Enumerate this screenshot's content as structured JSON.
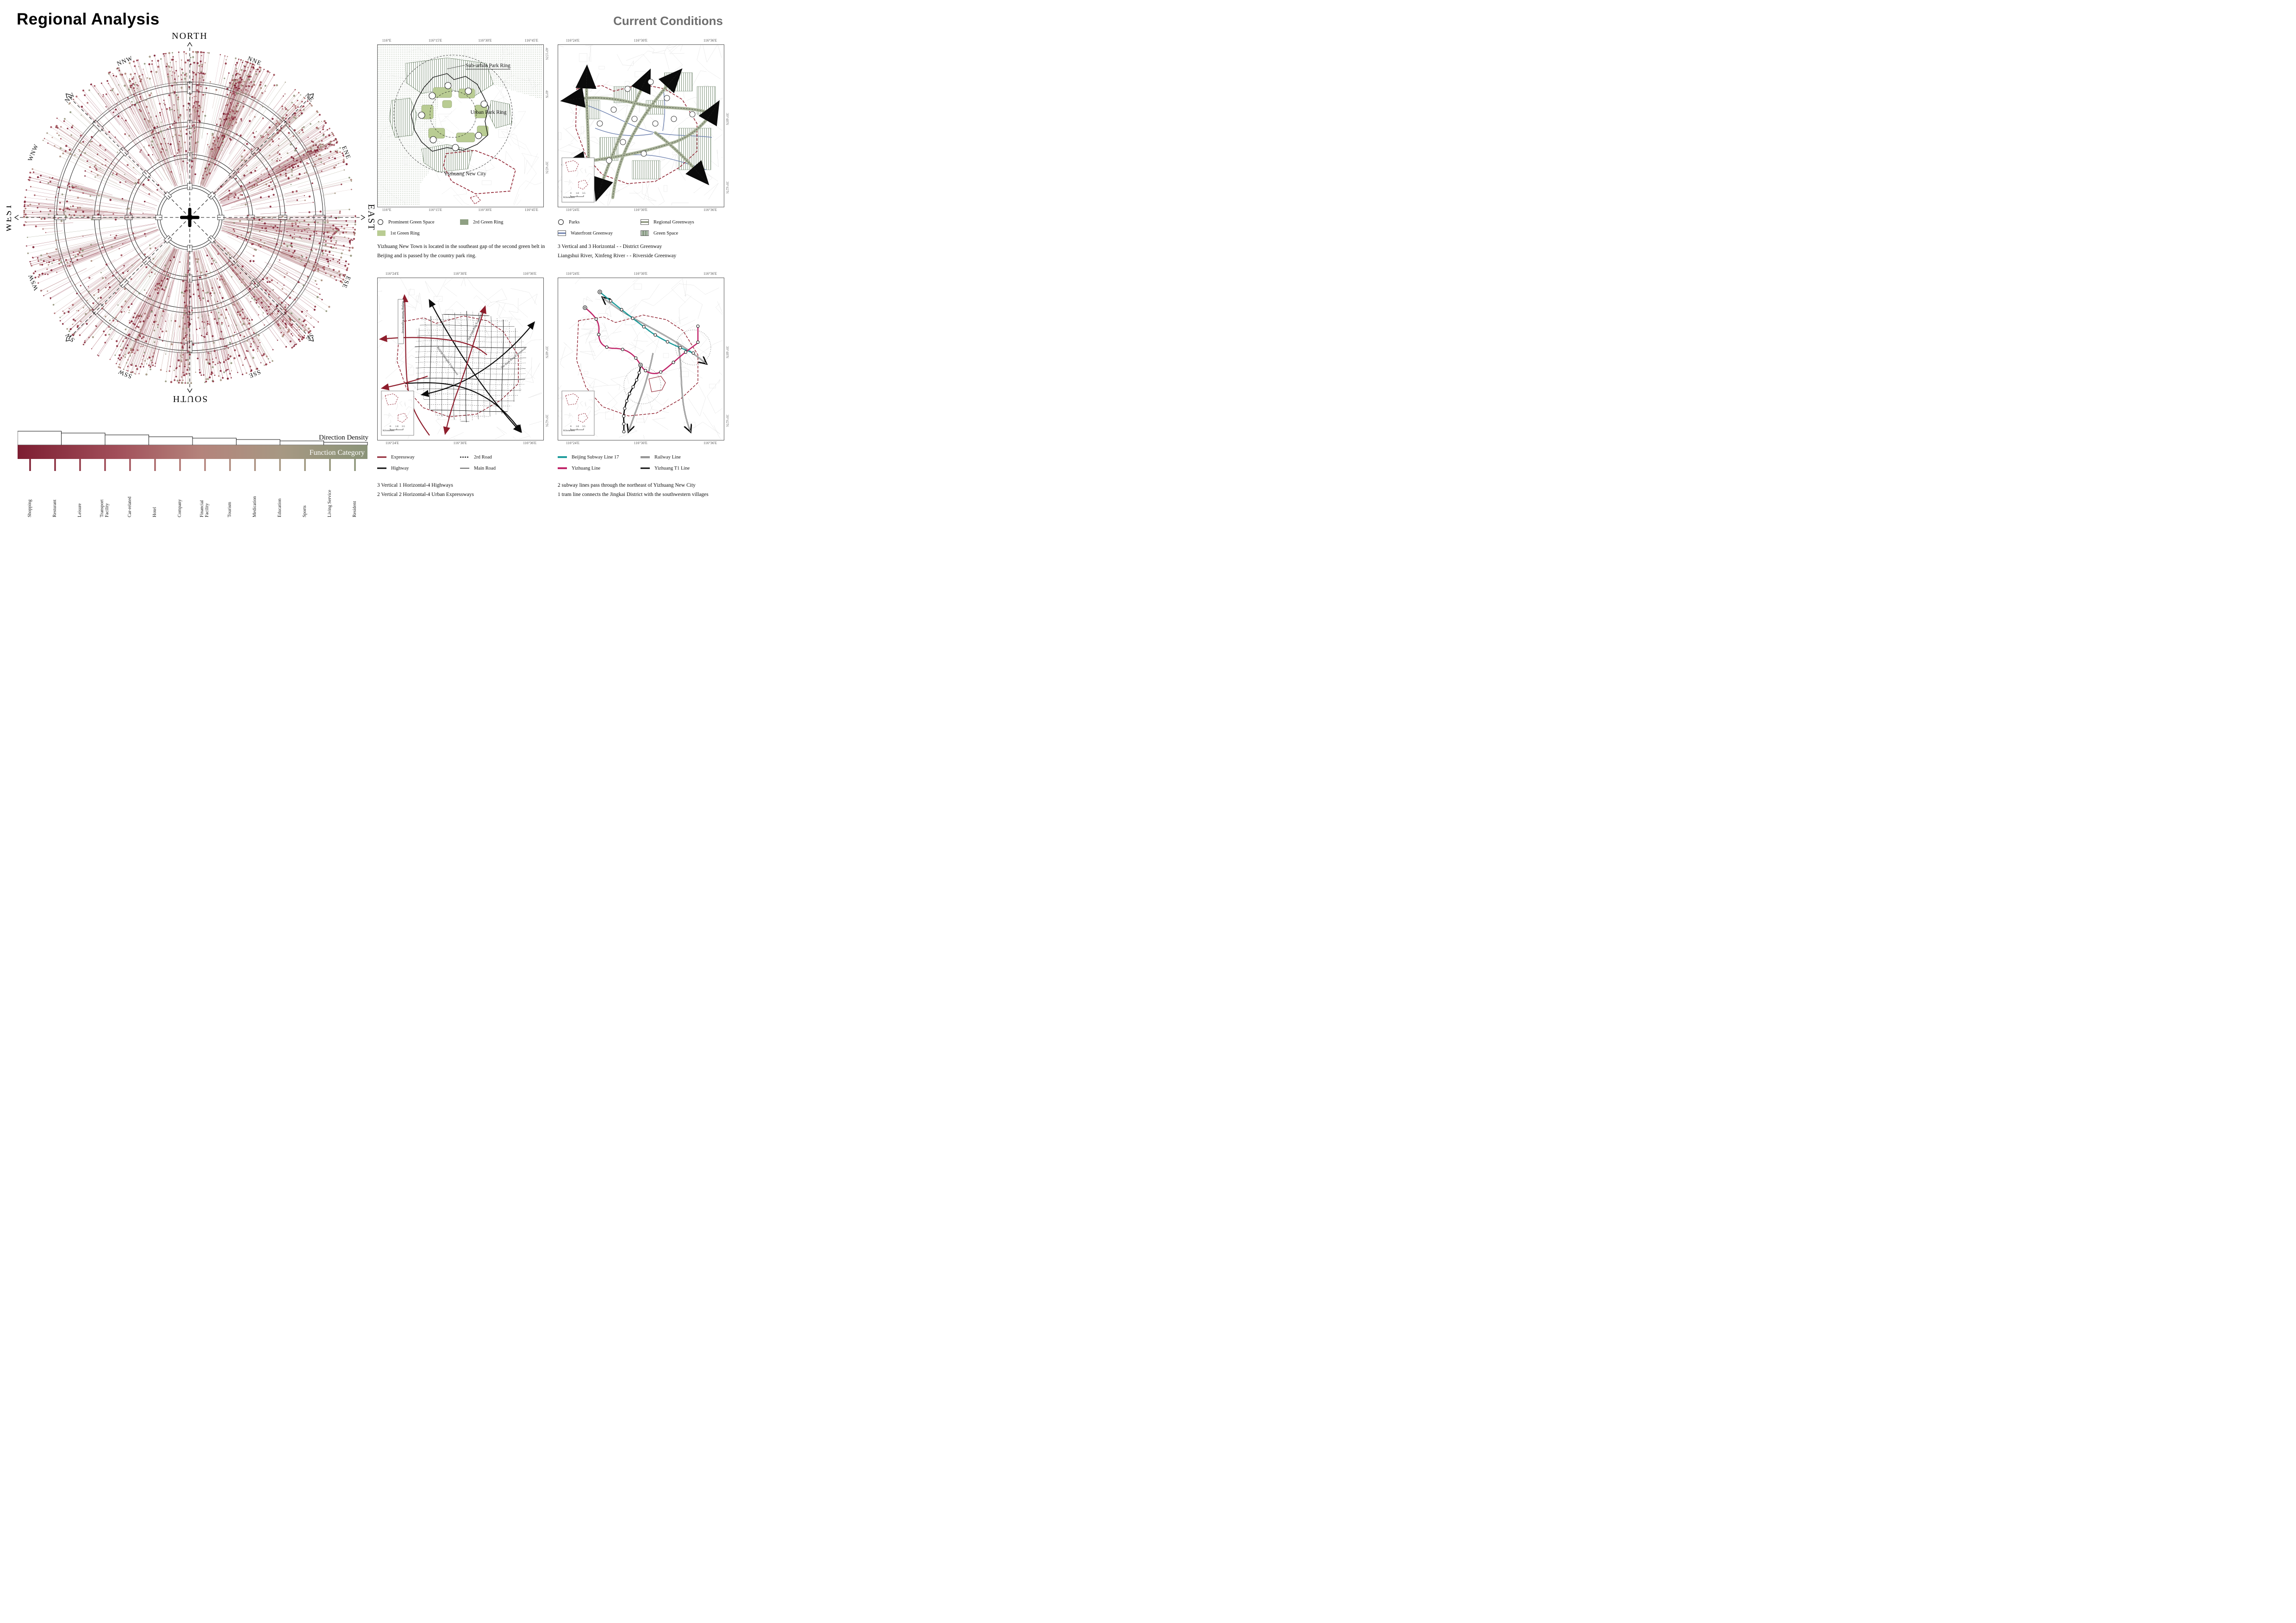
{
  "page": {
    "title": "Regional Analysis",
    "subtitle": "Current Conditions"
  },
  "colors": {
    "dark_red": "#7D1E32",
    "red_mid": "#A14E59",
    "rose": "#B4837B",
    "taupe": "#A79883",
    "sage": "#8A9478",
    "boundary_red": "#8E1D2C",
    "expressway_red": "#8E1D2C",
    "greenway_corridor": "#A9B399",
    "hatch_green": "#4F6B49",
    "light_green": "#B9CC93",
    "ring2_green": "#8FA083",
    "river_blue": "#6B7FAE",
    "subway_teal": "#1F9C9C",
    "yizhuang_magenta": "#C02569",
    "subtitle_gray": "#6E6E6E"
  },
  "chart_data": {
    "type": "radial-scatter",
    "title": "Direction Density",
    "subtitle_bar": "Function Category",
    "directions": [
      "NORTH",
      "NNE",
      "NE",
      "ENE",
      "EAST",
      "ESE",
      "SE",
      "SSE",
      "SOUTH",
      "SSW",
      "SW",
      "WSW",
      "WEST",
      "WNW",
      "NW",
      "NNW"
    ],
    "direction_density": [
      0.85,
      1.0,
      0.5,
      0.8,
      0.65,
      0.55,
      0.7,
      0.6,
      0.75,
      0.65,
      0.4,
      0.3,
      0.45,
      0.35,
      0.25,
      0.5
    ],
    "rings": [
      {
        "inner": 64,
        "outer": 70
      },
      {
        "inner": 128,
        "outer": 136
      },
      {
        "inner": 196,
        "outer": 206
      },
      {
        "inner": 272,
        "outer": 288
      }
    ],
    "max_radius": 356,
    "point_count": 2400,
    "seed": 7,
    "categories": [
      "Shopping",
      "Resturant",
      "Leisure",
      "Transport Facility",
      "Car-related",
      "Hotel",
      "Company",
      "Financial Facility",
      "Tourism",
      "Medication",
      "Education",
      "Sports",
      "Living Service",
      "Resident"
    ],
    "gradient_stops": [
      {
        "t": 0,
        "c": "#7D1E32"
      },
      {
        "t": 0.28,
        "c": "#A14E59"
      },
      {
        "t": 0.52,
        "c": "#B4837B"
      },
      {
        "t": 0.75,
        "c": "#A79883"
      },
      {
        "t": 1,
        "c": "#8A9478"
      }
    ],
    "legend": {
      "density_label": "Direction Density",
      "category_label": "Function Category",
      "step_tops": [
        10,
        14,
        18,
        22,
        25,
        28,
        31,
        34
      ]
    }
  },
  "maps": {
    "scale_bar": {
      "unit": "Kilometers",
      "t0": "0",
      "t1": "1.8",
      "t2": "3.5"
    },
    "green_rings": {
      "coords_top": [
        "116°E",
        "116°15'E",
        "116°30'E",
        "116°45'E"
      ],
      "coords_right": [
        "40°15'N",
        "40°N",
        "39°45'N"
      ],
      "labels": [
        "Sub-urban Park Ring",
        "Urban Park Ring",
        "Yizhuang New City"
      ],
      "legend": [
        {
          "icon": "circle",
          "label": "Prominent Green Space"
        },
        {
          "icon": "swatch-sage",
          "label": "2rd Green Ring"
        },
        {
          "icon": "swatch-light",
          "label": "1st Green Ring"
        }
      ],
      "caption": "Yizhuang New Town is located in the southeast gap of the second green belt in Beijing and is passed by the country park ring."
    },
    "greenways": {
      "coords_top": [
        "116°24'E",
        "116°30'E",
        "116°36'E"
      ],
      "coords_right": [
        "39°48'N",
        "39°42'N"
      ],
      "legend": [
        {
          "icon": "circle",
          "label": "Parks"
        },
        {
          "icon": "regional-greenway",
          "label": "Regional Greenways"
        },
        {
          "icon": "waterfront",
          "label": "Waterfront Greenway"
        },
        {
          "icon": "green-space",
          "label": "Green Space"
        }
      ],
      "caption_lines": [
        "3 Vertical and 3 Horizontal - - District Greenway",
        "Liangshui River, Xinfeng River - - Riverside Greenway"
      ]
    },
    "roads": {
      "coords_top": [
        "116°24'E",
        "116°30'E",
        "116°36'E"
      ],
      "coords_right": [
        "39°48'N",
        "39°42'N"
      ],
      "road_labels": [
        "Beijing-Taiwan Expressway",
        "Beijing-Shanghai Expressway",
        "The Fifth Ring Expressway",
        "The Sixth Ring Expressway"
      ],
      "legend": [
        {
          "icon": "line-red",
          "label": "Expressway"
        },
        {
          "icon": "line-dashed",
          "label": "2rd Road"
        },
        {
          "icon": "line-black-thick",
          "label": "Highway"
        },
        {
          "icon": "line-black-thin",
          "label": "Main Road"
        }
      ],
      "caption_lines": [
        "3 Vertical 1 Horizontal-4 Highways",
        "2 Vertical 2 Horizontal-4 Urban Expressways"
      ]
    },
    "transit": {
      "coords_top": [
        "116°24'E",
        "116°30'E",
        "116°36'E"
      ],
      "coords_right": [
        "39°48'N",
        "39°42'N"
      ],
      "legend": [
        {
          "icon": "line-teal",
          "label": "Beijing Subway Line 17"
        },
        {
          "icon": "line-railway",
          "label": "Railway Line"
        },
        {
          "icon": "line-magenta",
          "label": "Yizhuang Line"
        },
        {
          "icon": "line-black-thick",
          "label": "Yizhuang T1 Line"
        }
      ],
      "caption_lines": [
        "2 subway lines pass through the northeast of Yizhuang New City",
        "1 tram line connects the Jingkai District with the southwestern villages"
      ]
    }
  }
}
